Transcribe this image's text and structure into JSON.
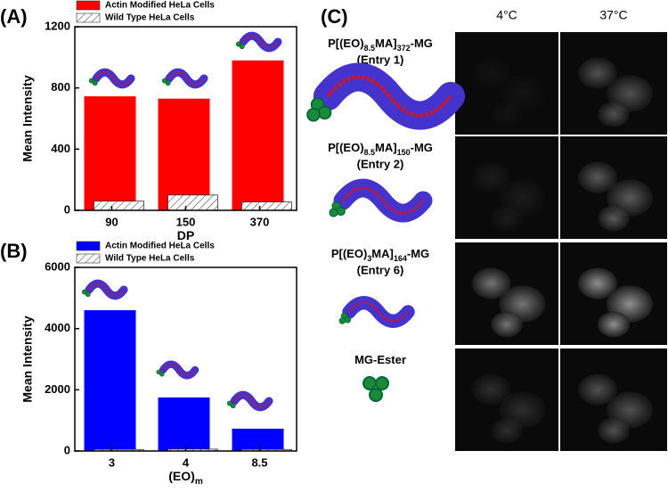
{
  "chart_data": [
    {
      "type": "bar",
      "panel": "(A)",
      "ylabel": "Mean Intensity",
      "xlabel": [
        "DP"
      ],
      "categories": [
        "90",
        "150",
        "370"
      ],
      "series": [
        {
          "name": "Actin Modified HeLa Cells",
          "color": "#ff0000",
          "hatch": false,
          "values": [
            745,
            730,
            980
          ]
        },
        {
          "name": "Wild Type HeLa Cells",
          "color": "#ffffff",
          "hatch": true,
          "values": [
            60,
            100,
            55
          ]
        }
      ],
      "ylim": [
        0,
        1200
      ],
      "yticks": [
        0,
        400,
        800,
        1200
      ]
    },
    {
      "type": "bar",
      "panel": "(B)",
      "ylabel": "Mean Intensity",
      "xlabel": [
        "(EO)",
        "m"
      ],
      "categories": [
        "3",
        "4",
        "8.5"
      ],
      "series": [
        {
          "name": "Actin Modified HeLa Cells",
          "color": "#0000ff",
          "hatch": false,
          "values": [
            4600,
            1750,
            730
          ]
        },
        {
          "name": "Wild Type HeLa Cells",
          "color": "#ffffff",
          "hatch": true,
          "values": [
            50,
            60,
            50
          ]
        }
      ],
      "ylim": [
        0,
        6000
      ],
      "yticks": [
        0,
        2000,
        4000,
        6000
      ]
    }
  ],
  "panel_c": {
    "label": "(C)",
    "columns": [
      "4°C",
      "37°C"
    ],
    "rows": [
      {
        "name": [
          "P[(EO)",
          "8.5",
          "MA]",
          "372",
          "-MG"
        ],
        "entry": "(Entry 1)"
      },
      {
        "name": [
          "P[(EO)",
          "8.5",
          "MA]",
          "150",
          "-MG"
        ],
        "entry": "(Entry 2)"
      },
      {
        "name": [
          "P[(EO)",
          "3",
          "MA]",
          "164",
          "-MG"
        ],
        "entry": "(Entry 6)"
      },
      {
        "name": [
          "MG-Ester"
        ]
      }
    ]
  }
}
